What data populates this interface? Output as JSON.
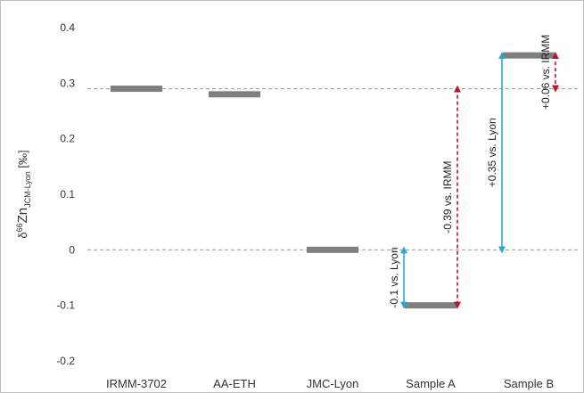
{
  "chart_data": {
    "type": "bar",
    "ylabel_parts": {
      "delta": "δ",
      "mass": "66",
      "element": "Zn",
      "subscript": "JCM-Lyon",
      "unit": " [‰]"
    },
    "ylim": [
      -0.2,
      0.4
    ],
    "yticks": [
      0.4,
      0.3,
      0.2,
      0.1,
      0,
      -0.1,
      -0.2
    ],
    "ytick_labels": [
      "0.4",
      "0.3",
      "0.2",
      "0.1",
      "0",
      "-0.1",
      "-0.2"
    ],
    "categories": [
      "IRMM-3702",
      "AA-ETH",
      "JMC-Lyon",
      "Sample A",
      "Sample B"
    ],
    "values": [
      0.29,
      0.28,
      0.0,
      -0.1,
      0.35
    ],
    "reference_lines": [
      {
        "value": 0.29,
        "style": "dashed",
        "color": "#9a9a9a"
      },
      {
        "value": 0.0,
        "style": "dashed",
        "color": "#9a9a9a"
      }
    ],
    "annotations": [
      {
        "category": "Sample A",
        "from": 0.0,
        "to": -0.1,
        "text": "-0.1 vs. Lyon",
        "color": "#29a8d6",
        "line": "solid",
        "side": "left"
      },
      {
        "category": "Sample A",
        "from": 0.29,
        "to": -0.1,
        "text": "-0.39 vs. IRMM",
        "color": "#c0142a",
        "line": "dashed",
        "side": "right"
      },
      {
        "category": "Sample B",
        "from": 0.0,
        "to": 0.35,
        "text": "+0.35 vs. Lyon",
        "color": "#29a8d6",
        "line": "solid",
        "side": "left"
      },
      {
        "category": "Sample B",
        "from": 0.35,
        "to": 0.29,
        "text": "+0.06 vs. IRMM",
        "color": "#c0142a",
        "line": "dashed",
        "side": "right"
      }
    ],
    "bar_color": "#7f7f7f",
    "grid": false,
    "legend": "none"
  }
}
